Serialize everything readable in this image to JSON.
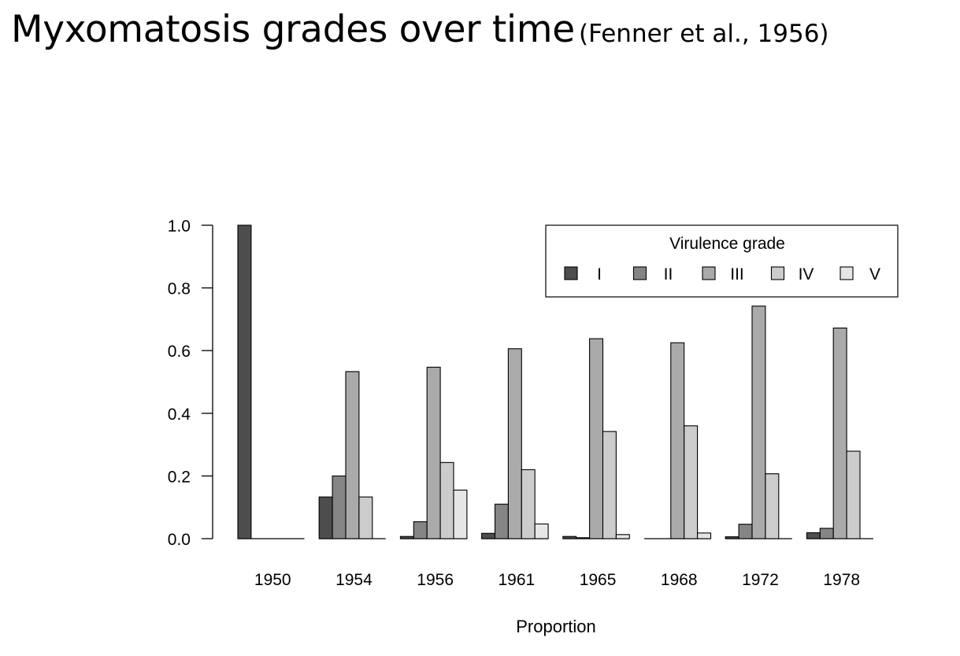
{
  "title": "Myxomatosis grades over time",
  "subtitle": "(Fenner et al., 1956)",
  "colors": {
    "I": "#4d4d4d",
    "II": "#858585",
    "III": "#aaaaaa",
    "IV": "#cccccc",
    "V": "#e6e6e6",
    "stroke": "#000000"
  },
  "chart_data": {
    "type": "bar",
    "categories": [
      "1950",
      "1954",
      "1956",
      "1961",
      "1965",
      "1968",
      "1972",
      "1978"
    ],
    "series": [
      {
        "name": "I",
        "values": [
          1.0,
          0.133,
          0.007,
          0.017,
          0.007,
          0.0,
          0.006,
          0.019
        ]
      },
      {
        "name": "II",
        "values": [
          0.0,
          0.2,
          0.054,
          0.11,
          0.003,
          0.0,
          0.046,
          0.033
        ]
      },
      {
        "name": "III",
        "values": [
          0.0,
          0.533,
          0.547,
          0.606,
          0.638,
          0.625,
          0.742,
          0.672
        ]
      },
      {
        "name": "IV",
        "values": [
          0.0,
          0.133,
          0.243,
          0.22,
          0.342,
          0.36,
          0.207,
          0.279
        ]
      },
      {
        "name": "V",
        "values": [
          0.0,
          0.0,
          0.155,
          0.047,
          0.013,
          0.018,
          0.0,
          0.0
        ]
      }
    ],
    "xlabel": "Proportion",
    "ylabel": "",
    "ylim": [
      0,
      1
    ],
    "yticks": [
      "0.0",
      "0.2",
      "0.4",
      "0.6",
      "0.8",
      "1.0"
    ],
    "legend": {
      "title": "Virulence grade",
      "position": "top-right",
      "labels": [
        "I",
        "II",
        "III",
        "IV",
        "V"
      ]
    },
    "grid": false
  }
}
